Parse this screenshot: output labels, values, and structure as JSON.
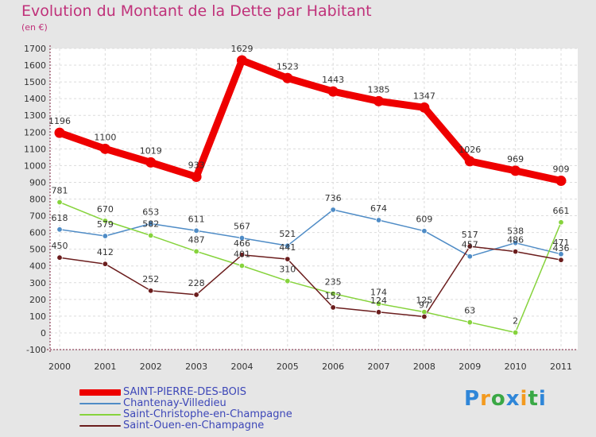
{
  "chart_data": {
    "type": "line",
    "title": "Evolution du Montant de la Dette par Habitant",
    "subtitle": "(en €)",
    "xlabel": "",
    "ylabel": "",
    "x": [
      "2000",
      "2001",
      "2002",
      "2003",
      "2004",
      "2005",
      "2006",
      "2007",
      "2008",
      "2009",
      "2010",
      "2011"
    ],
    "ylim": [
      -100,
      1700
    ],
    "yticks": [
      -100,
      0,
      100,
      200,
      300,
      400,
      500,
      600,
      700,
      800,
      900,
      1000,
      1100,
      1200,
      1300,
      1400,
      1500,
      1600,
      1700
    ],
    "grid": true,
    "legend_position": "bottom-left",
    "series": [
      {
        "name": "SAINT-PIERRE-DES-BOIS",
        "color": "#ee0000",
        "values": [
          1196,
          1100,
          1019,
          933,
          1629,
          1523,
          1443,
          1385,
          1347,
          1026,
          969,
          909
        ]
      },
      {
        "name": "Chantenay-Villedieu",
        "color": "#4f8cc6",
        "values": [
          618,
          579,
          653,
          611,
          567,
          521,
          736,
          674,
          609,
          457,
          538,
          471
        ]
      },
      {
        "name": "Saint-Christophe-en-Champagne",
        "color": "#86d33c",
        "values": [
          781,
          670,
          582,
          487,
          401,
          310,
          235,
          174,
          125,
          63,
          2,
          661
        ]
      },
      {
        "name": "Saint-Ouen-en-Champagne",
        "color": "#6b1d1d",
        "values": [
          450,
          412,
          252,
          228,
          466,
          441,
          152,
          124,
          97,
          517,
          486,
          436
        ]
      }
    ]
  },
  "logo": {
    "letters": [
      "P",
      "r",
      "o",
      "x",
      "i",
      "t",
      "i"
    ],
    "colors": [
      "#2f86d8",
      "#f39a1f",
      "#3aa845",
      "#2f86d8",
      "#f39a1f",
      "#3aa845",
      "#2f86d8"
    ]
  }
}
